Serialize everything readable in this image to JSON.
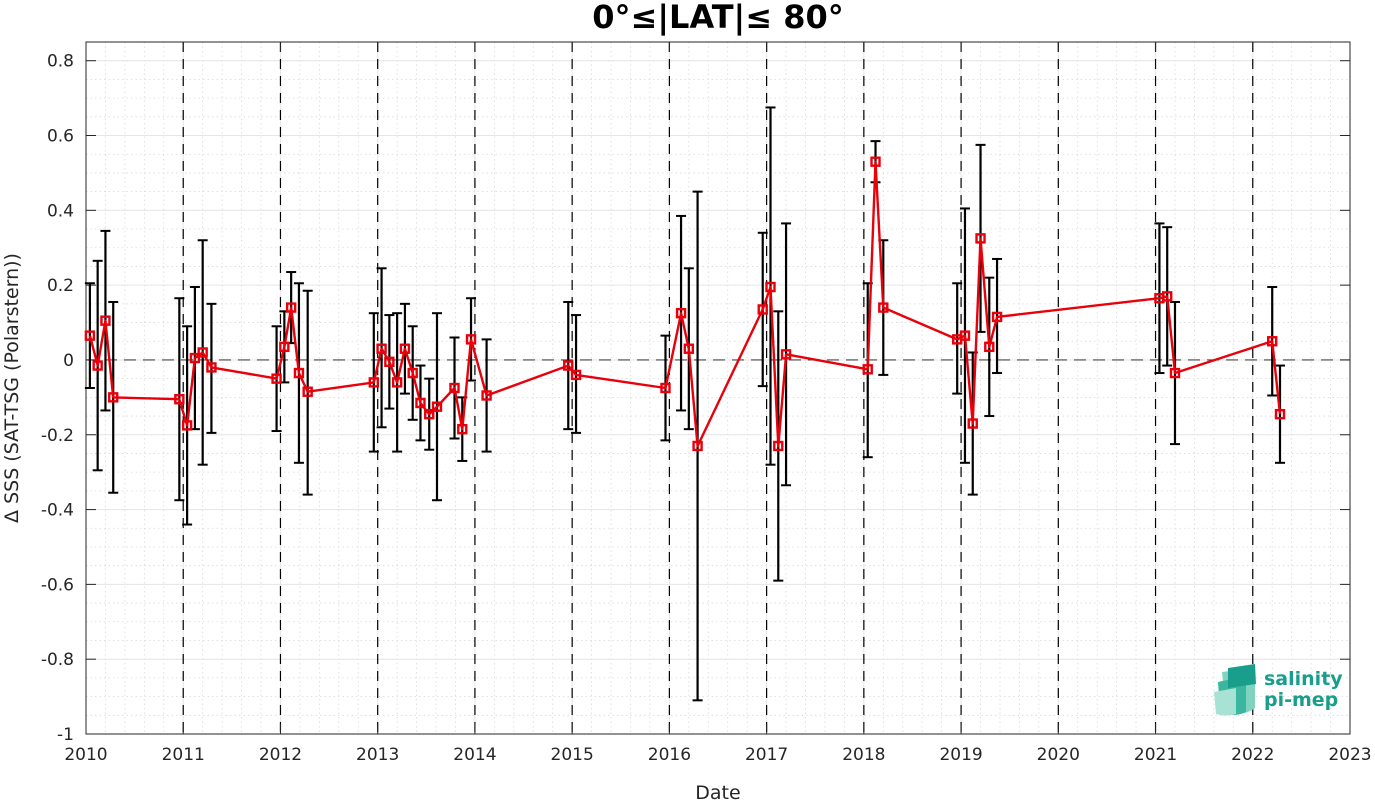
{
  "chart_data": {
    "type": "line",
    "title": "0°≤|LAT|≤ 80°",
    "xlabel": "Date",
    "ylabel": "Δ SSS (SAT-TSG (Polarstern))",
    "xlim": [
      2010,
      2023
    ],
    "ylim": [
      -1,
      0.85
    ],
    "x_ticks": [
      "2010",
      "2011",
      "2012",
      "2013",
      "2014",
      "2015",
      "2016",
      "2017",
      "2018",
      "2019",
      "2020",
      "2021",
      "2022",
      "2023"
    ],
    "y_ticks": [
      "0.8",
      "0.6",
      "0.4",
      "0.2",
      "0",
      "-0.2",
      "-0.4",
      "-0.6",
      "-0.8",
      "-1"
    ],
    "y_tick_values": [
      0.8,
      0.6,
      0.4,
      0.2,
      0,
      -0.2,
      -0.4,
      -0.6,
      -0.8,
      -1
    ],
    "year_marker_lines": [
      2011,
      2012,
      2013,
      2014,
      2015,
      2016,
      2017,
      2018,
      2019,
      2020,
      2021,
      2022
    ],
    "zero_line": 0,
    "grid": true,
    "series": [
      {
        "color": "#e8000b",
        "marker": "square",
        "errorbar_color": "#000000",
        "points": [
          {
            "x": 2010.04,
            "y": 0.065,
            "lo": -0.075,
            "hi": 0.205
          },
          {
            "x": 2010.12,
            "y": -0.015,
            "lo": -0.295,
            "hi": 0.265
          },
          {
            "x": 2010.2,
            "y": 0.105,
            "lo": -0.135,
            "hi": 0.345
          },
          {
            "x": 2010.28,
            "y": -0.1,
            "lo": -0.355,
            "hi": 0.155
          },
          {
            "x": 2010.96,
            "y": -0.105,
            "lo": -0.375,
            "hi": 0.165
          },
          {
            "x": 2011.04,
            "y": -0.175,
            "lo": -0.44,
            "hi": 0.09
          },
          {
            "x": 2011.12,
            "y": 0.005,
            "lo": -0.185,
            "hi": 0.195
          },
          {
            "x": 2011.2,
            "y": 0.02,
            "lo": -0.28,
            "hi": 0.32
          },
          {
            "x": 2011.29,
            "y": -0.02,
            "lo": -0.195,
            "hi": 0.15
          },
          {
            "x": 2011.96,
            "y": -0.05,
            "lo": -0.19,
            "hi": 0.09
          },
          {
            "x": 2012.04,
            "y": 0.035,
            "lo": -0.06,
            "hi": 0.13
          },
          {
            "x": 2012.11,
            "y": 0.14,
            "lo": 0.045,
            "hi": 0.235
          },
          {
            "x": 2012.19,
            "y": -0.035,
            "lo": -0.275,
            "hi": 0.205
          },
          {
            "x": 2012.28,
            "y": -0.085,
            "lo": -0.36,
            "hi": 0.185
          },
          {
            "x": 2012.96,
            "y": -0.06,
            "lo": -0.245,
            "hi": 0.125
          },
          {
            "x": 2013.04,
            "y": 0.03,
            "lo": -0.18,
            "hi": 0.245
          },
          {
            "x": 2013.12,
            "y": -0.005,
            "lo": -0.13,
            "hi": 0.12
          },
          {
            "x": 2013.2,
            "y": -0.06,
            "lo": -0.245,
            "hi": 0.125
          },
          {
            "x": 2013.28,
            "y": 0.03,
            "lo": -0.09,
            "hi": 0.15
          },
          {
            "x": 2013.36,
            "y": -0.035,
            "lo": -0.16,
            "hi": 0.09
          },
          {
            "x": 2013.44,
            "y": -0.115,
            "lo": -0.215,
            "hi": -0.015
          },
          {
            "x": 2013.53,
            "y": -0.145,
            "lo": -0.24,
            "hi": -0.05
          },
          {
            "x": 2013.61,
            "y": -0.125,
            "lo": -0.375,
            "hi": 0.125
          },
          {
            "x": 2013.79,
            "y": -0.075,
            "lo": -0.21,
            "hi": 0.06
          },
          {
            "x": 2013.87,
            "y": -0.185,
            "lo": -0.27,
            "hi": -0.1
          },
          {
            "x": 2013.96,
            "y": 0.055,
            "lo": -0.055,
            "hi": 0.165
          },
          {
            "x": 2014.12,
            "y": -0.095,
            "lo": -0.245,
            "hi": 0.055
          },
          {
            "x": 2014.96,
            "y": -0.015,
            "lo": -0.185,
            "hi": 0.155
          },
          {
            "x": 2015.04,
            "y": -0.04,
            "lo": -0.195,
            "hi": 0.12
          },
          {
            "x": 2015.96,
            "y": -0.075,
            "lo": -0.215,
            "hi": 0.065
          },
          {
            "x": 2016.12,
            "y": 0.125,
            "lo": -0.135,
            "hi": 0.385
          },
          {
            "x": 2016.2,
            "y": 0.03,
            "lo": -0.185,
            "hi": 0.245
          },
          {
            "x": 2016.29,
            "y": -0.23,
            "lo": -0.91,
            "hi": 0.45
          },
          {
            "x": 2016.96,
            "y": 0.135,
            "lo": -0.07,
            "hi": 0.34
          },
          {
            "x": 2017.04,
            "y": 0.195,
            "lo": -0.28,
            "hi": 0.675
          },
          {
            "x": 2017.12,
            "y": -0.23,
            "lo": -0.59,
            "hi": 0.13
          },
          {
            "x": 2017.2,
            "y": 0.015,
            "lo": -0.335,
            "hi": 0.365
          },
          {
            "x": 2018.04,
            "y": -0.025,
            "lo": -0.26,
            "hi": 0.205
          },
          {
            "x": 2018.12,
            "y": 0.53,
            "lo": 0.475,
            "hi": 0.585
          },
          {
            "x": 2018.2,
            "y": 0.14,
            "lo": -0.04,
            "hi": 0.32
          },
          {
            "x": 2018.96,
            "y": 0.055,
            "lo": -0.09,
            "hi": 0.205
          },
          {
            "x": 2019.04,
            "y": 0.065,
            "lo": -0.275,
            "hi": 0.405
          },
          {
            "x": 2019.12,
            "y": -0.17,
            "lo": -0.36,
            "hi": 0.02
          },
          {
            "x": 2019.2,
            "y": 0.325,
            "lo": 0.075,
            "hi": 0.575
          },
          {
            "x": 2019.29,
            "y": 0.035,
            "lo": -0.15,
            "hi": 0.22
          },
          {
            "x": 2019.37,
            "y": 0.115,
            "lo": -0.035,
            "hi": 0.27
          },
          {
            "x": 2021.04,
            "y": 0.165,
            "lo": -0.035,
            "hi": 0.365
          },
          {
            "x": 2021.12,
            "y": 0.17,
            "lo": -0.015,
            "hi": 0.355
          },
          {
            "x": 2021.2,
            "y": -0.035,
            "lo": -0.225,
            "hi": 0.155
          },
          {
            "x": 2022.2,
            "y": 0.05,
            "lo": -0.095,
            "hi": 0.195
          },
          {
            "x": 2022.28,
            "y": -0.145,
            "lo": -0.275,
            "hi": -0.015
          }
        ]
      }
    ]
  },
  "logo": {
    "line1": "salinity",
    "line2": "pi-mep",
    "color": "#1a9e8c"
  }
}
